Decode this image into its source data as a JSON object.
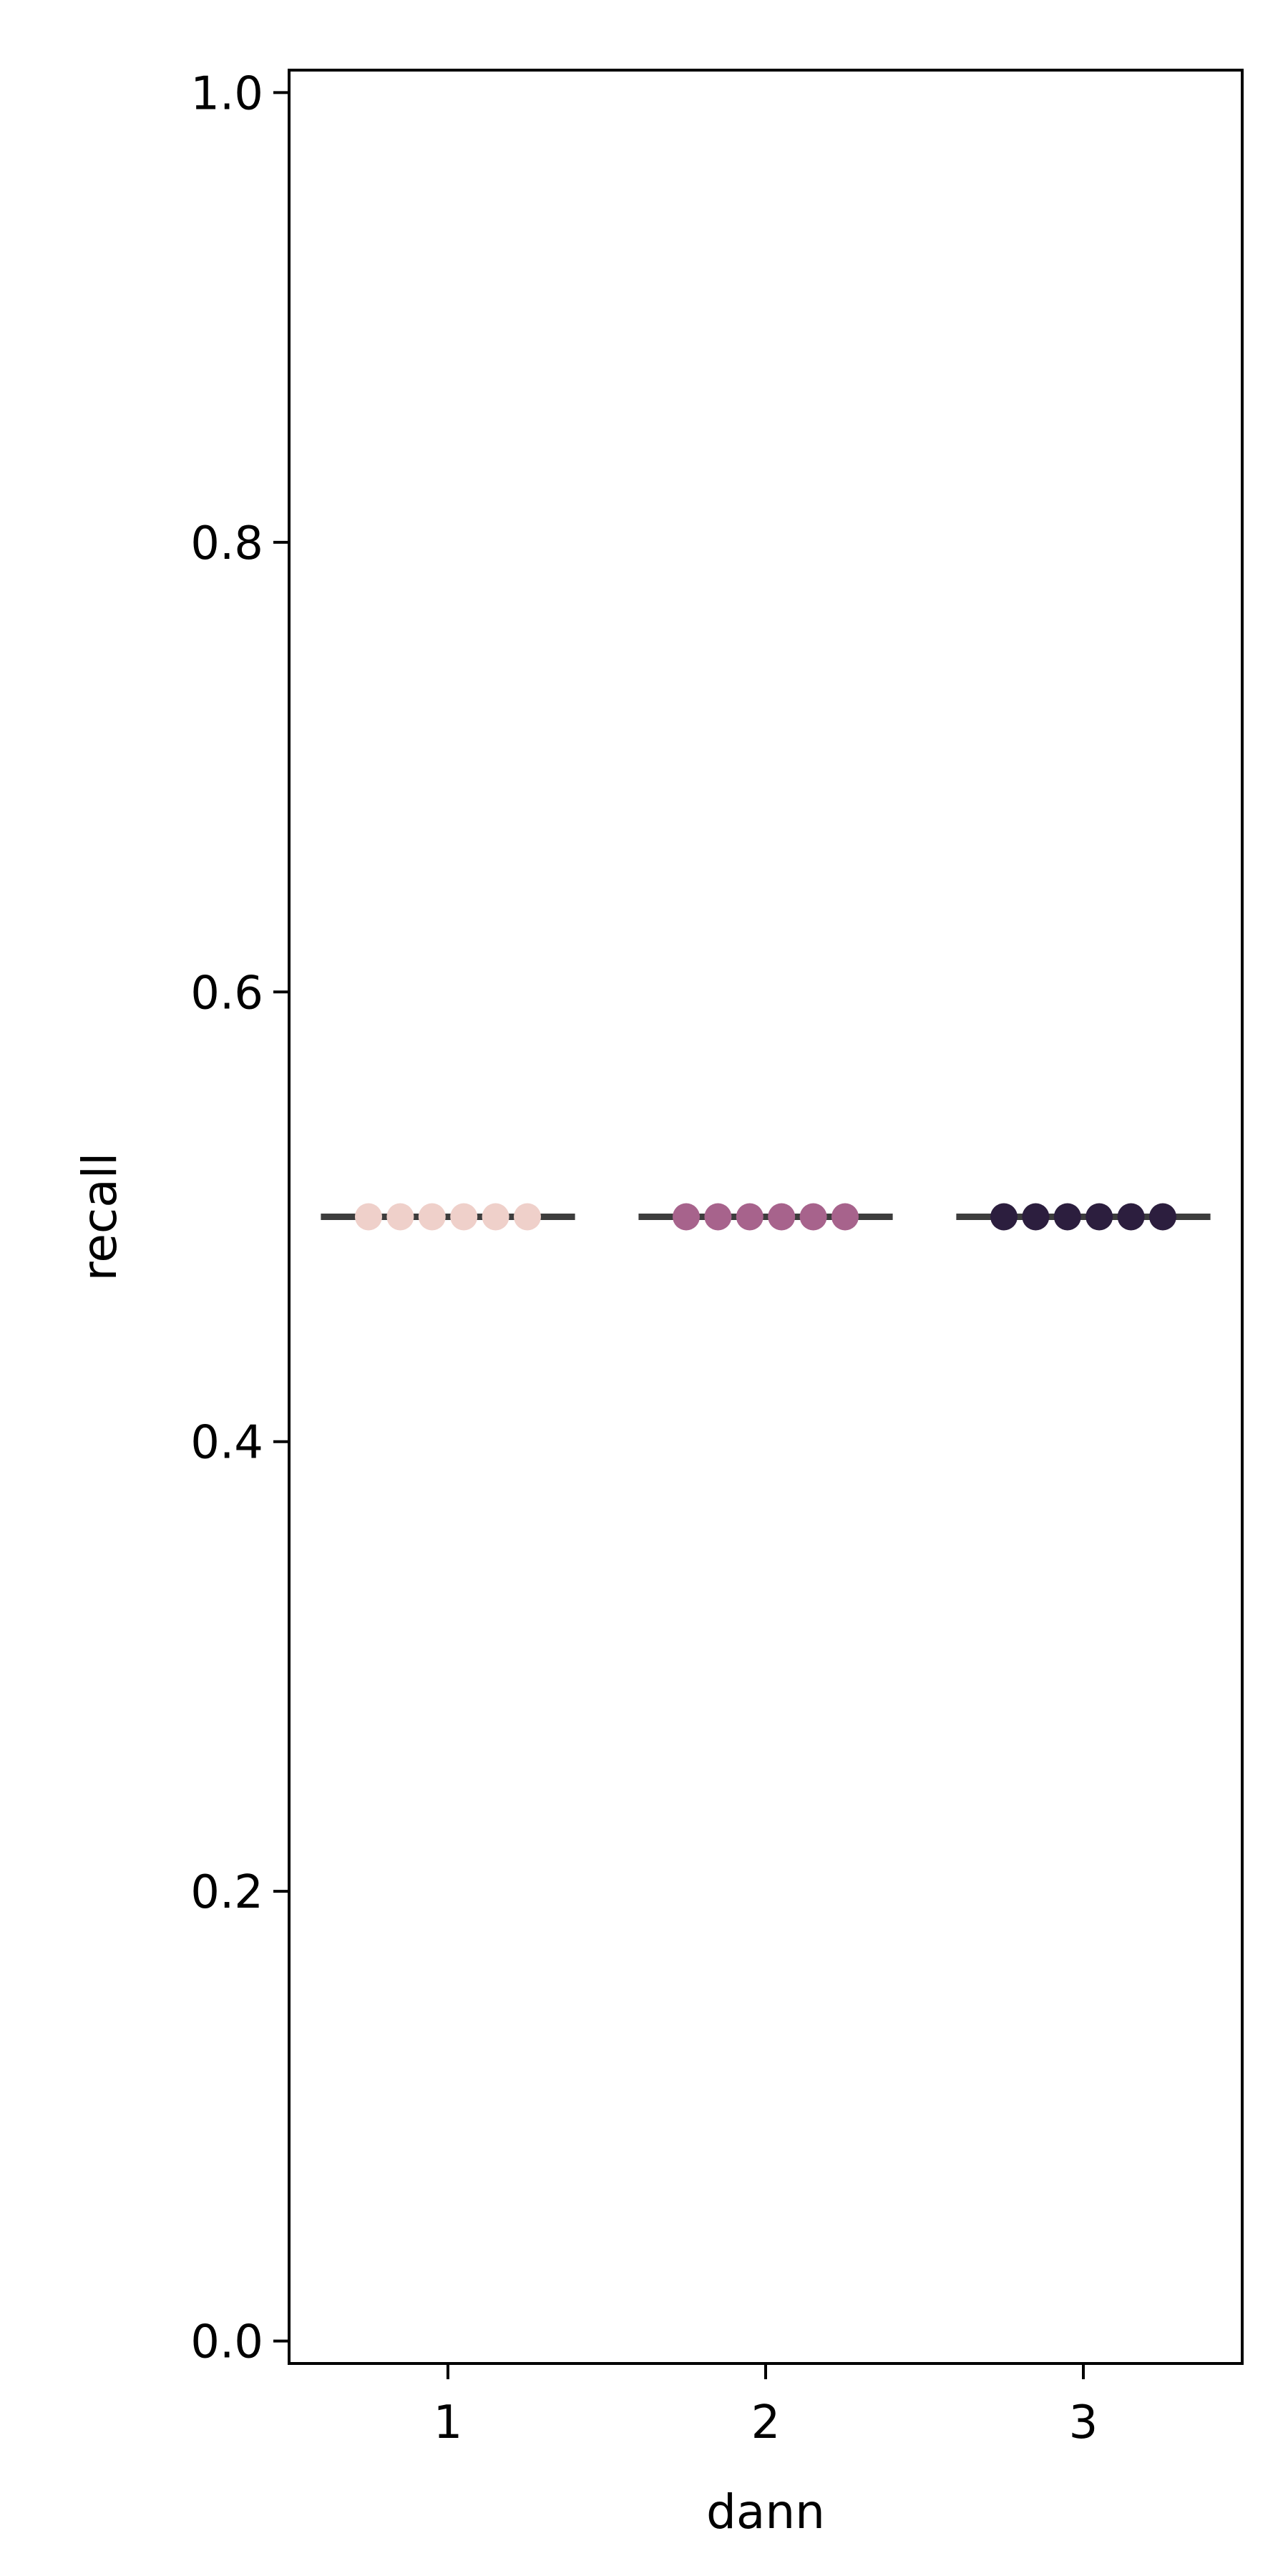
{
  "chart_data": {
    "type": "strip",
    "xlabel": "dann",
    "ylabel": "recall",
    "categories": [
      "1",
      "2",
      "3"
    ],
    "ylim": [
      -0.01,
      1.01
    ],
    "yticks": [
      "0.0",
      "0.2",
      "0.4",
      "0.6",
      "0.8",
      "1.0"
    ],
    "grid": false,
    "series": [
      {
        "category": "1",
        "color": "#efd0ca",
        "values": [
          0.5,
          0.5,
          0.5,
          0.5,
          0.5,
          0.5
        ],
        "median": 0.5
      },
      {
        "category": "2",
        "color": "#a7638c",
        "values": [
          0.5,
          0.5,
          0.5,
          0.5,
          0.5,
          0.5
        ],
        "median": 0.5
      },
      {
        "category": "3",
        "color": "#2c1e3e",
        "values": [
          0.5,
          0.5,
          0.5,
          0.5,
          0.5,
          0.5
        ],
        "median": 0.5
      }
    ],
    "median_line_color": "#3d3d3d"
  }
}
